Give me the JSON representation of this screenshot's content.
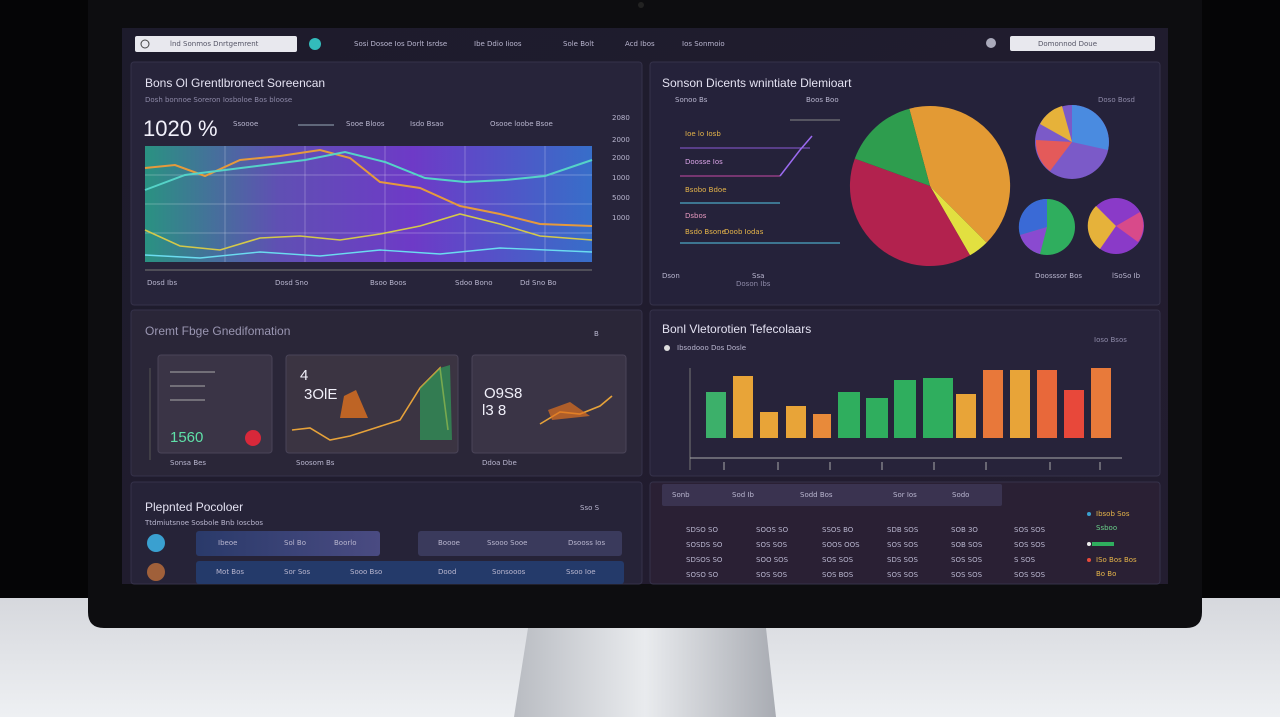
{
  "top_bar": {
    "search": "lnd Sonmos Dnrtgemrent",
    "nav": [
      "Sosi Dosoe Ios Dorlt Isrdse",
      "Ibe Ddio Iioos",
      "Sole Bolt",
      "Acd Ibos",
      "Ios Sonmoio"
    ],
    "search_right": "Domonnod Doue"
  },
  "trend_panel": {
    "title": "Bons Ol Grentlbronect Soreencan",
    "subtitle": "Dosh bonnoe Soreron Iosboloe Bos bloose",
    "value": "1020 %",
    "legend": [
      "Ssoooe",
      "Sooe Bloos",
      "Isdo Bsao",
      "Osooe loobe Bsoe"
    ],
    "y_labels": [
      "2080",
      "2000",
      "2000",
      "1000",
      "5000",
      "1000"
    ],
    "x_labels": [
      "Dosd Ibs",
      "Dosd Sno",
      "Bsoo Boos",
      "Sdoo Bono",
      "Dd Sno Bo"
    ]
  },
  "pie_panel": {
    "title": "Sonson Dicents wnintiate Dlemioart",
    "subtitle": "Sonoo Bs",
    "tag": "Boos Boo",
    "header_right": "Doso Bosd",
    "items": [
      "Ioe lo Iosb",
      "Doosse Ios",
      "Bsobo Bdoe",
      "Dsbos",
      "Doob Iodas",
      "Bsdo Bsone"
    ],
    "footer": [
      "Dson",
      "Ssa",
      "Doson Ibs",
      "Doosssor Bos",
      "lSoSo Ib"
    ]
  },
  "cards_panel": {
    "title": "Oremt Fbge Gnedifomation",
    "tag": "B",
    "cards": [
      {
        "value": "1560",
        "label": "Sonsa Bes"
      },
      {
        "value": "4",
        "value2": "3OlE",
        "label": "Soosom Bs"
      },
      {
        "value": "O9S8",
        "value2": "l3 8",
        "label": "Ddoa Dbe"
      }
    ]
  },
  "bars_panel": {
    "title": "Bonl Vletorotien Tefecolaars",
    "subtitle": "Ibsodooo Dos Dosle",
    "tag": "Ioso Bsos"
  },
  "people_panel": {
    "title": "Plepnted Pocoloer",
    "subtitle": "Ttdmiutsnoe Sosbole Bnb Ioscbos",
    "tag": "Sso S",
    "rows": [
      [
        "Ibeoe",
        "Sol Bo",
        "Boorlo",
        "Boooe",
        "Ssooo Sooe",
        "Dsooss Ios"
      ],
      [
        "Mot Bos",
        "Sor Sos",
        "Sooo Bso",
        "Dood",
        "Sonsooos",
        "Ssoo Ioe"
      ]
    ]
  },
  "table_panel": {
    "header": [
      "Sonb",
      "Sod Ib",
      "Sodd Bos",
      "Sor Ios",
      "Sodo"
    ],
    "rows": [
      [
        "SDSO SO",
        "SOOS SO",
        "SSOS BO",
        "SDB SOS",
        "SOB 3O",
        "SOS SOS"
      ],
      [
        "SOSDS SO",
        "SOS SOS",
        "SOOS OOS",
        "SOS SOS",
        "SOB SOS",
        "SOS SOS"
      ],
      [
        "SDSOS SO",
        "SOO SOS",
        "SOS SOS",
        "SDS SOS",
        "SOS SOS",
        "S SOS"
      ],
      [
        "SOSO SO",
        "SOS SOS",
        "SOS BOS",
        "SOS SOS",
        "SOS SOS",
        "SOS SOS"
      ]
    ],
    "legend": [
      "Ibsob Sos",
      "Ssboo",
      "ISo Bos Bos",
      "Bo Bo"
    ]
  }
}
